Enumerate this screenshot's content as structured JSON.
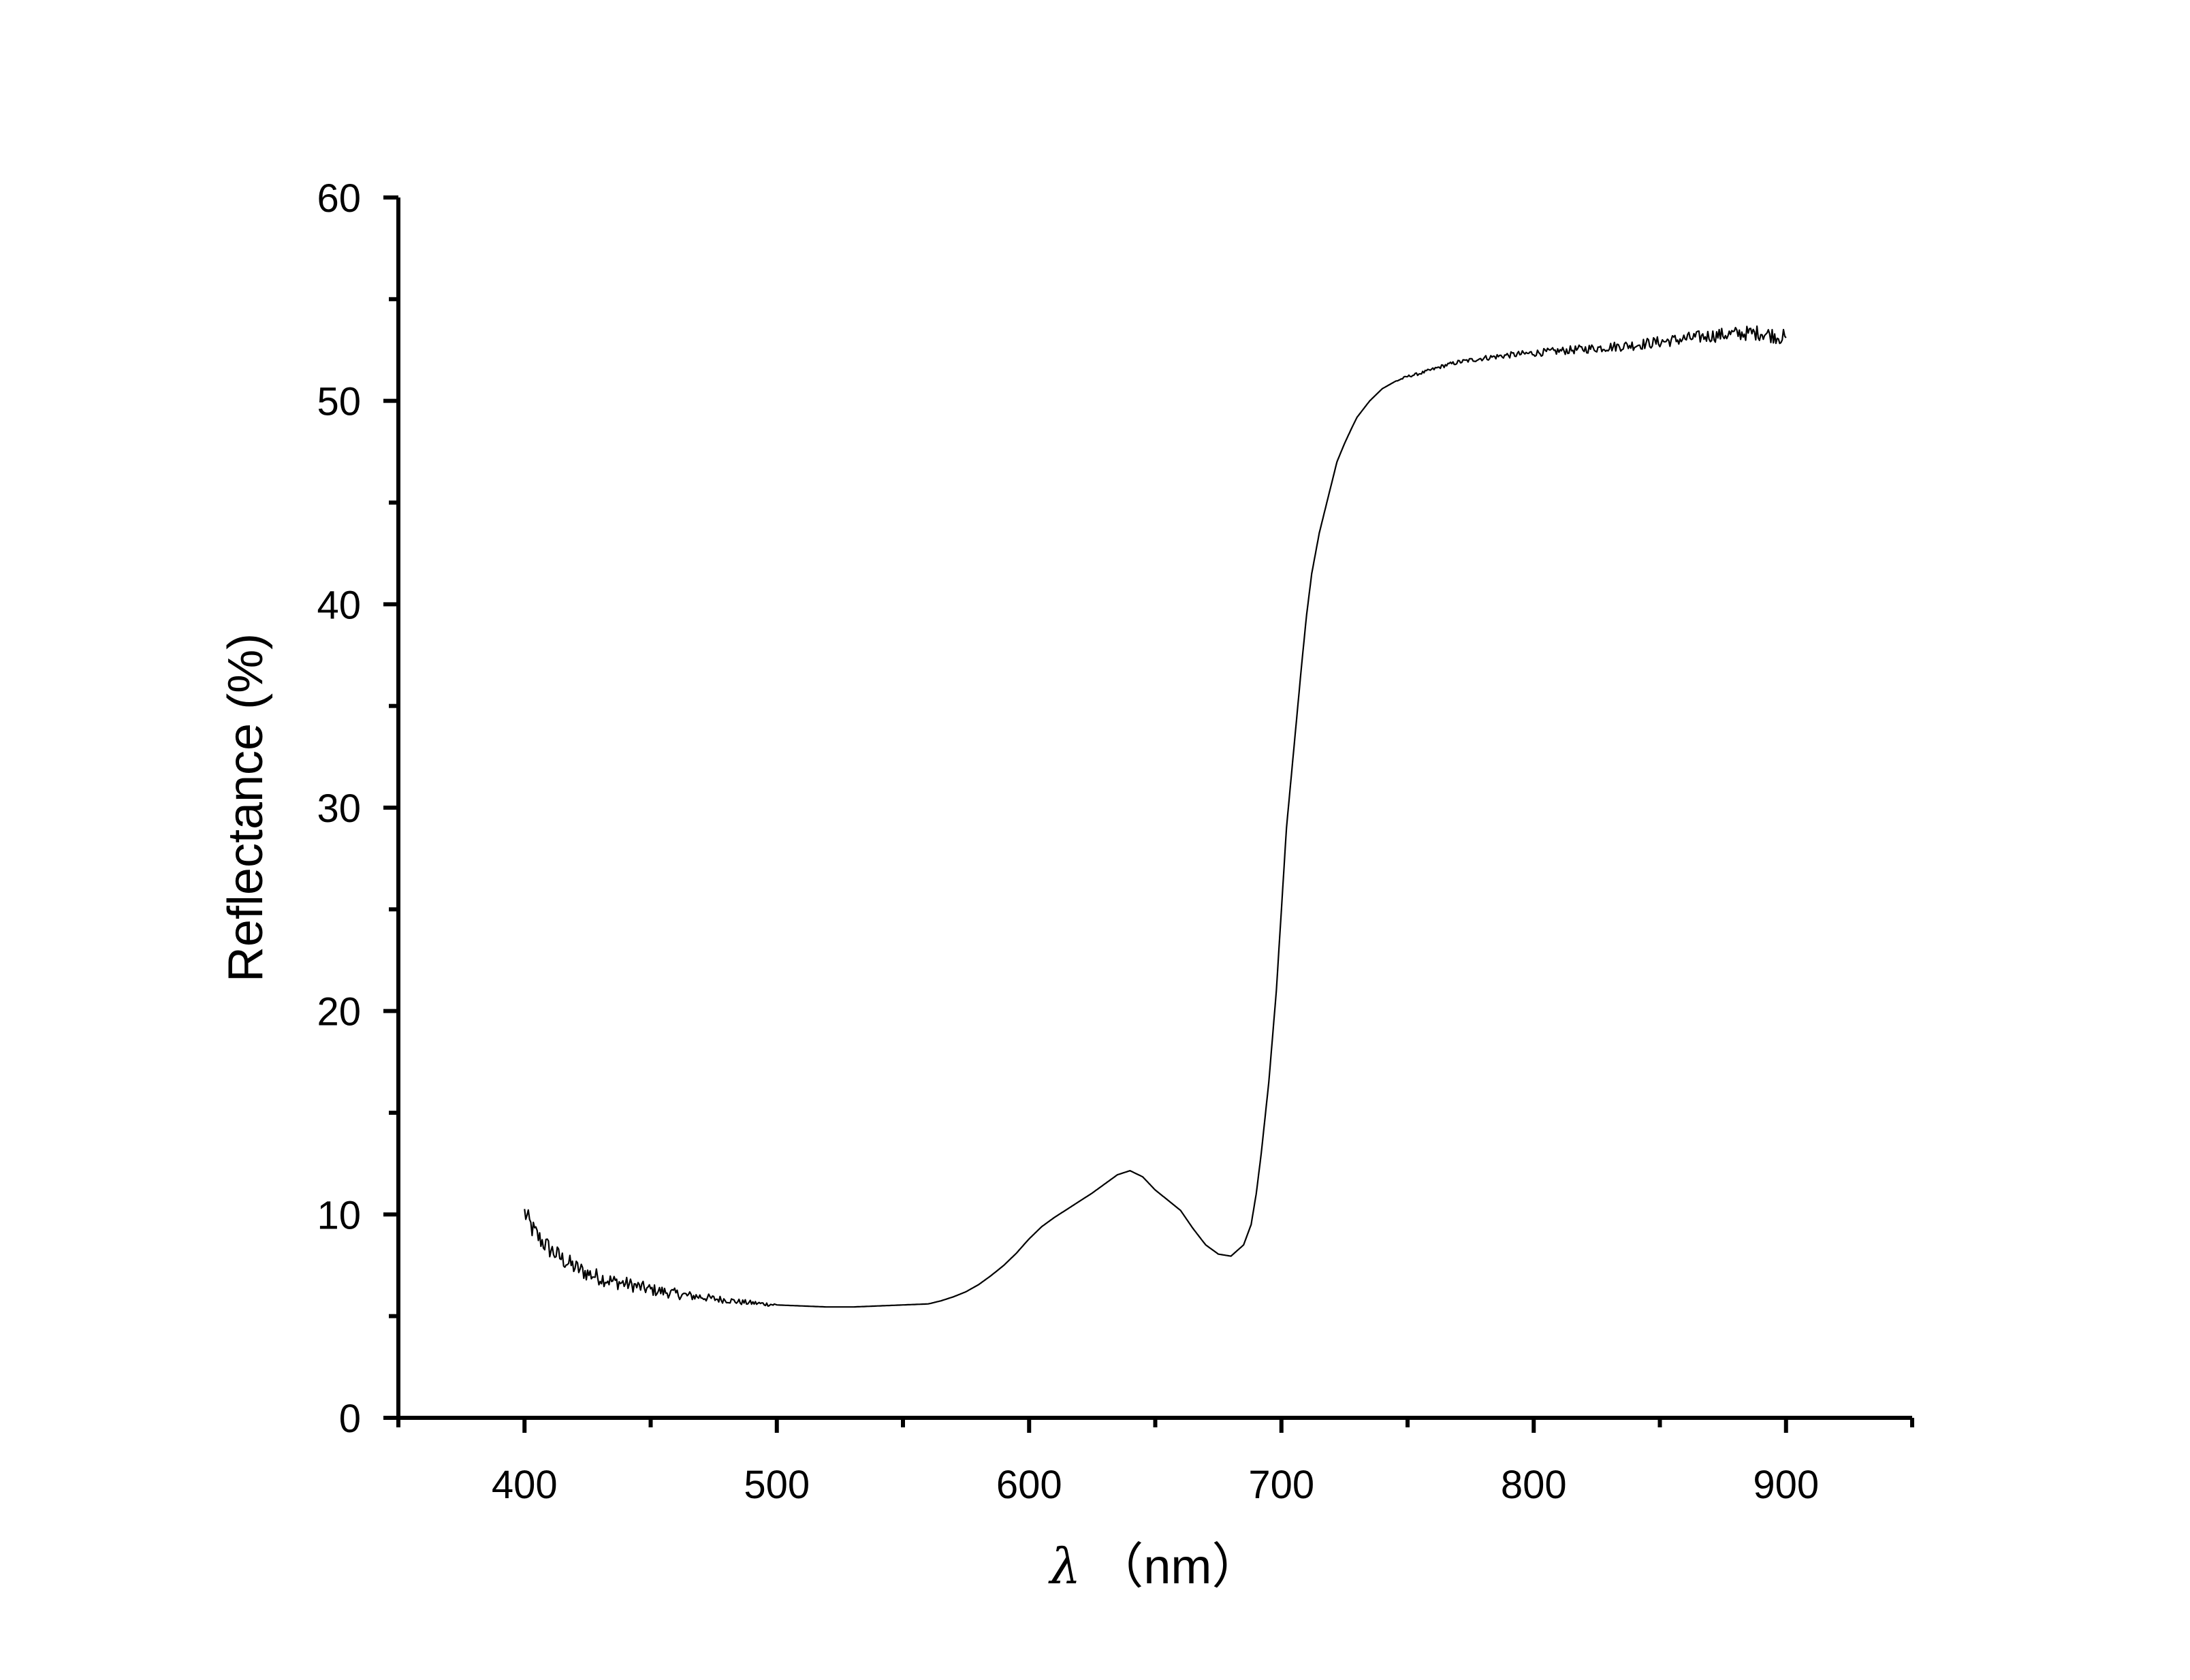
{
  "chart_data": {
    "type": "line",
    "title": "",
    "xlabel_symbol": "λ",
    "xlabel_unit": "（nm）",
    "ylabel": "Reflectance (%)",
    "xlim": [
      350,
      950
    ],
    "ylim": [
      0,
      60
    ],
    "x_ticks": [
      400,
      500,
      600,
      700,
      800,
      900
    ],
    "x_tick_labels": [
      "400",
      "500",
      "600",
      "700",
      "800",
      "900"
    ],
    "x_minor_ticks": [
      350,
      450,
      550,
      650,
      750,
      850,
      950
    ],
    "y_ticks": [
      0,
      10,
      20,
      30,
      40,
      50,
      60
    ],
    "y_tick_labels": [
      "0",
      "10",
      "20",
      "30",
      "40",
      "50",
      "60"
    ],
    "y_minor_ticks": [
      5,
      15,
      25,
      35,
      45,
      55
    ],
    "grid": false,
    "legend": "none",
    "line_color": "#000000",
    "series": [
      {
        "x": [
          400,
          403,
          406,
          410,
          415,
          420,
          425,
          430,
          435,
          440,
          445,
          450,
          455,
          460,
          465,
          470,
          475,
          480,
          485,
          490,
          495,
          500,
          510,
          520,
          530,
          540,
          550,
          560,
          565,
          570,
          575,
          580,
          585,
          590,
          595,
          600,
          605,
          610,
          615,
          620,
          625,
          630,
          635,
          640,
          645,
          650,
          655,
          660,
          665,
          670,
          675,
          680,
          685,
          688,
          690,
          692,
          695,
          698,
          700,
          702,
          705,
          708,
          710,
          712,
          715,
          718,
          720,
          722,
          725,
          728,
          730,
          735,
          740,
          745,
          750,
          755,
          760,
          765,
          770,
          775,
          780,
          790,
          800,
          810,
          820,
          830,
          840,
          850,
          860,
          870,
          880,
          890,
          900
        ],
        "y": [
          10.1,
          9.3,
          8.8,
          8.3,
          7.8,
          7.4,
          7.1,
          6.9,
          6.7,
          6.6,
          6.45,
          6.3,
          6.2,
          6.1,
          6.0,
          5.95,
          5.85,
          5.8,
          5.7,
          5.65,
          5.6,
          5.55,
          5.5,
          5.45,
          5.45,
          5.5,
          5.55,
          5.6,
          5.75,
          5.95,
          6.2,
          6.55,
          7.0,
          7.5,
          8.1,
          8.8,
          9.4,
          9.85,
          10.25,
          10.65,
          11.05,
          11.5,
          11.95,
          12.15,
          11.85,
          11.2,
          10.7,
          10.2,
          9.3,
          8.5,
          8.05,
          7.95,
          8.5,
          9.5,
          11.0,
          13.0,
          16.5,
          21.0,
          25.0,
          29.0,
          33.0,
          37.0,
          39.5,
          41.5,
          43.5,
          45.0,
          46.0,
          47.0,
          47.9,
          48.7,
          49.2,
          50.0,
          50.6,
          50.95,
          51.2,
          51.35,
          51.55,
          51.75,
          51.9,
          52.0,
          52.1,
          52.25,
          52.35,
          52.45,
          52.55,
          52.65,
          52.75,
          52.9,
          53.05,
          53.2,
          53.3,
          53.35,
          53.1
        ]
      }
    ]
  }
}
